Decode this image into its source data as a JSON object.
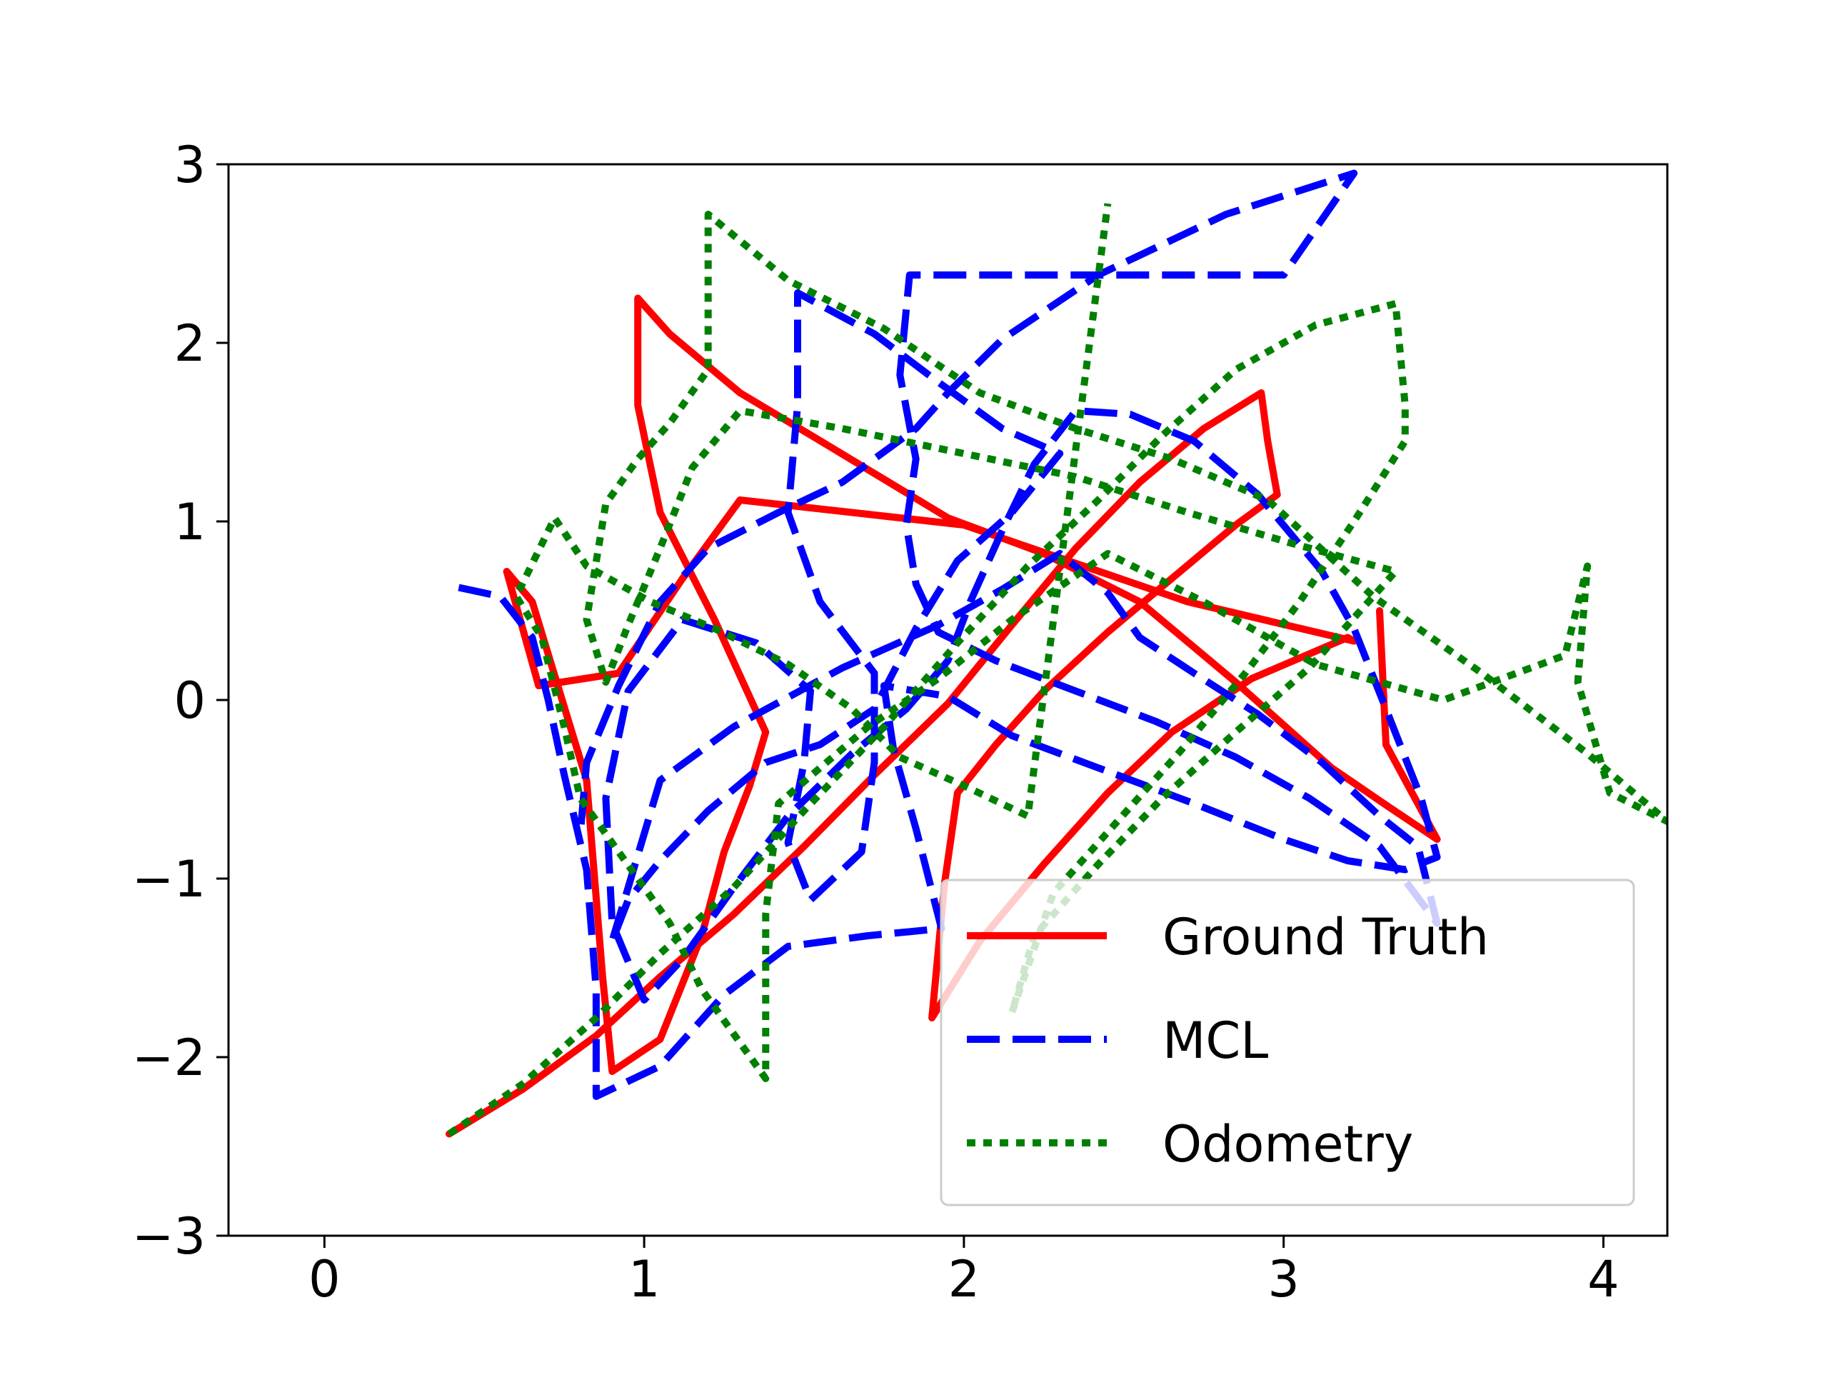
{
  "chart_data": {
    "type": "line",
    "title": "",
    "xlabel": "",
    "ylabel": "",
    "xlim": [
      -0.3,
      4.2
    ],
    "ylim": [
      -3,
      3
    ],
    "xticks": [
      0,
      1,
      2,
      3,
      4
    ],
    "yticks": [
      -3,
      -2,
      -1,
      0,
      1,
      2,
      3
    ],
    "xtick_labels": [
      "0",
      "1",
      "2",
      "3",
      "4"
    ],
    "ytick_labels": [
      "−3",
      "−2",
      "−1",
      "0",
      "1",
      "2",
      "3"
    ],
    "grid": false,
    "legend_position": "lower-right",
    "series": [
      {
        "name": "Ground Truth",
        "color": "#ff0000",
        "style": "solid",
        "points": [
          [
            0.39,
            -2.43
          ],
          [
            0.62,
            -2.18
          ],
          [
            0.85,
            -1.88
          ],
          [
            1.05,
            -1.55
          ],
          [
            1.28,
            -1.2
          ],
          [
            1.5,
            -0.82
          ],
          [
            1.72,
            -0.42
          ],
          [
            1.95,
            -0.02
          ],
          [
            2.15,
            0.42
          ],
          [
            2.35,
            0.85
          ],
          [
            2.55,
            1.22
          ],
          [
            2.75,
            1.52
          ],
          [
            2.93,
            1.72
          ],
          [
            2.95,
            1.45
          ],
          [
            2.98,
            1.15
          ],
          [
            2.85,
            0.98
          ],
          [
            2.65,
            0.68
          ],
          [
            2.45,
            0.38
          ],
          [
            2.25,
            0.05
          ],
          [
            2.1,
            -0.25
          ],
          [
            1.98,
            -0.52
          ],
          [
            1.94,
            -1.02
          ],
          [
            1.9,
            -1.78
          ],
          [
            2.05,
            -1.35
          ],
          [
            2.25,
            -0.92
          ],
          [
            2.45,
            -0.52
          ],
          [
            2.65,
            -0.18
          ],
          [
            2.9,
            0.12
          ],
          [
            3.2,
            0.35
          ],
          [
            3.22,
            0.33
          ],
          [
            2.7,
            0.55
          ],
          [
            2.0,
            0.98
          ],
          [
            1.3,
            1.12
          ],
          [
            1.12,
            0.68
          ],
          [
            0.92,
            0.15
          ],
          [
            0.67,
            0.08
          ],
          [
            0.57,
            0.72
          ],
          [
            0.65,
            0.55
          ],
          [
            0.82,
            -0.45
          ],
          [
            0.87,
            -1.55
          ],
          [
            0.9,
            -2.08
          ],
          [
            1.05,
            -1.9
          ],
          [
            1.18,
            -1.32
          ],
          [
            1.25,
            -0.85
          ],
          [
            1.33,
            -0.48
          ],
          [
            1.38,
            -0.18
          ],
          [
            1.22,
            0.45
          ],
          [
            1.05,
            1.05
          ],
          [
            0.98,
            1.65
          ],
          [
            0.98,
            2.25
          ],
          [
            1.08,
            2.05
          ],
          [
            1.3,
            1.72
          ],
          [
            1.58,
            1.42
          ],
          [
            1.95,
            1.02
          ],
          [
            2.25,
            0.82
          ],
          [
            2.55,
            0.55
          ],
          [
            2.85,
            0.1
          ],
          [
            3.15,
            -0.38
          ],
          [
            3.33,
            -0.6
          ],
          [
            3.48,
            -0.78
          ],
          [
            3.32,
            -0.25
          ],
          [
            3.3,
            0.5
          ]
        ]
      },
      {
        "name": "MCL",
        "color": "#0000ff",
        "style": "dashed",
        "points": [
          [
            0.42,
            0.63
          ],
          [
            0.55,
            0.58
          ],
          [
            0.65,
            0.35
          ],
          [
            0.7,
            0.0
          ],
          [
            0.75,
            -0.42
          ],
          [
            0.82,
            -0.95
          ],
          [
            0.85,
            -1.62
          ],
          [
            0.85,
            -2.22
          ],
          [
            1.05,
            -2.05
          ],
          [
            1.25,
            -1.65
          ],
          [
            1.45,
            -1.38
          ],
          [
            1.7,
            -1.32
          ],
          [
            1.93,
            -1.28
          ],
          [
            1.85,
            -0.72
          ],
          [
            1.78,
            -0.28
          ],
          [
            1.75,
            0.08
          ],
          [
            1.95,
            0.02
          ],
          [
            2.15,
            -0.2
          ],
          [
            2.42,
            -0.38
          ],
          [
            2.72,
            -0.58
          ],
          [
            3.0,
            -0.78
          ],
          [
            3.2,
            -0.9
          ],
          [
            3.38,
            -0.95
          ],
          [
            3.48,
            -0.88
          ],
          [
            3.43,
            -0.55
          ],
          [
            3.32,
            -0.05
          ],
          [
            3.22,
            0.4
          ],
          [
            3.12,
            0.72
          ],
          [
            2.92,
            1.15
          ],
          [
            2.72,
            1.45
          ],
          [
            2.52,
            1.6
          ],
          [
            2.35,
            1.62
          ],
          [
            2.22,
            1.32
          ],
          [
            2.12,
            0.95
          ],
          [
            2.02,
            0.55
          ],
          [
            1.95,
            0.22
          ],
          [
            1.82,
            -0.05
          ],
          [
            1.65,
            -0.3
          ],
          [
            1.45,
            -0.65
          ],
          [
            1.28,
            -1.05
          ],
          [
            1.12,
            -1.45
          ],
          [
            1.0,
            -1.68
          ],
          [
            0.9,
            -1.25
          ],
          [
            0.88,
            -0.55
          ],
          [
            0.95,
            0.05
          ],
          [
            1.12,
            0.45
          ],
          [
            1.35,
            0.32
          ],
          [
            1.52,
            0.05
          ],
          [
            1.5,
            -0.35
          ],
          [
            1.45,
            -0.8
          ],
          [
            1.52,
            -1.12
          ],
          [
            1.68,
            -0.85
          ],
          [
            1.72,
            -0.35
          ],
          [
            1.72,
            0.15
          ],
          [
            1.55,
            0.55
          ],
          [
            1.45,
            1.05
          ],
          [
            1.48,
            1.65
          ],
          [
            1.48,
            2.28
          ],
          [
            1.72,
            2.05
          ],
          [
            1.92,
            1.78
          ],
          [
            2.12,
            1.52
          ],
          [
            2.3,
            1.38
          ],
          [
            2.15,
            1.05
          ],
          [
            1.98,
            0.78
          ],
          [
            1.85,
            0.4
          ],
          [
            1.72,
            -0.05
          ],
          [
            1.55,
            -0.25
          ],
          [
            1.38,
            -0.35
          ],
          [
            1.2,
            -0.62
          ],
          [
            1.05,
            -0.9
          ],
          [
            0.95,
            -1.12
          ],
          [
            0.9,
            -1.35
          ],
          [
            0.95,
            -1.05
          ],
          [
            1.05,
            -0.45
          ],
          [
            1.28,
            -0.15
          ],
          [
            1.62,
            0.18
          ],
          [
            1.92,
            0.42
          ],
          [
            2.12,
            0.62
          ],
          [
            2.3,
            0.82
          ],
          [
            2.45,
            0.6
          ],
          [
            2.55,
            0.35
          ],
          [
            2.72,
            0.15
          ],
          [
            2.92,
            -0.08
          ],
          [
            3.12,
            -0.35
          ],
          [
            3.3,
            -0.65
          ],
          [
            3.42,
            -0.82
          ],
          [
            3.48,
            -1.25
          ],
          [
            3.3,
            -0.82
          ],
          [
            3.08,
            -0.55
          ],
          [
            2.85,
            -0.32
          ],
          [
            2.6,
            -0.12
          ],
          [
            2.35,
            0.05
          ],
          [
            2.1,
            0.22
          ],
          [
            1.92,
            0.38
          ],
          [
            1.85,
            0.65
          ],
          [
            1.82,
            0.98
          ],
          [
            1.85,
            1.35
          ],
          [
            1.8,
            1.82
          ],
          [
            1.83,
            2.38
          ],
          [
            2.42,
            2.38
          ],
          [
            3.0,
            2.38
          ],
          [
            3.22,
            2.95
          ],
          [
            2.82,
            2.72
          ],
          [
            2.42,
            2.38
          ],
          [
            2.12,
            2.02
          ],
          [
            1.95,
            1.72
          ],
          [
            1.85,
            1.52
          ],
          [
            1.62,
            1.22
          ],
          [
            1.42,
            1.05
          ],
          [
            1.2,
            0.85
          ],
          [
            1.05,
            0.55
          ],
          [
            0.92,
            0.08
          ],
          [
            0.82,
            -0.35
          ],
          [
            0.8,
            -0.75
          ]
        ]
      },
      {
        "name": "Odometry",
        "color": "#008000",
        "style": "dotted",
        "points": [
          [
            0.39,
            -2.43
          ],
          [
            0.62,
            -2.15
          ],
          [
            0.85,
            -1.78
          ],
          [
            1.05,
            -1.42
          ],
          [
            1.28,
            -1.05
          ],
          [
            1.5,
            -0.62
          ],
          [
            1.75,
            -0.15
          ],
          [
            1.98,
            0.32
          ],
          [
            2.2,
            0.75
          ],
          [
            2.42,
            1.12
          ],
          [
            2.62,
            1.48
          ],
          [
            2.85,
            1.85
          ],
          [
            3.1,
            2.1
          ],
          [
            3.35,
            2.22
          ],
          [
            3.38,
            1.65
          ],
          [
            3.38,
            1.45
          ],
          [
            3.22,
            1.0
          ],
          [
            3.05,
            0.55
          ],
          [
            2.88,
            0.15
          ],
          [
            2.68,
            -0.28
          ],
          [
            2.48,
            -0.68
          ],
          [
            2.28,
            -1.08
          ],
          [
            2.15,
            -1.75
          ],
          [
            2.22,
            -1.32
          ],
          [
            2.42,
            -0.92
          ],
          [
            2.62,
            -0.55
          ],
          [
            2.85,
            -0.18
          ],
          [
            3.08,
            0.18
          ],
          [
            3.35,
            0.72
          ],
          [
            3.02,
            0.88
          ],
          [
            2.7,
            1.05
          ],
          [
            2.35,
            1.25
          ],
          [
            2.0,
            1.38
          ],
          [
            1.62,
            1.52
          ],
          [
            1.3,
            1.62
          ],
          [
            1.15,
            1.3
          ],
          [
            1.05,
            0.85
          ],
          [
            0.95,
            0.42
          ],
          [
            0.88,
            0.1
          ],
          [
            0.82,
            0.45
          ],
          [
            0.88,
            1.1
          ],
          [
            0.98,
            1.35
          ],
          [
            1.08,
            1.55
          ],
          [
            1.2,
            1.85
          ],
          [
            1.2,
            2.72
          ],
          [
            1.45,
            2.35
          ],
          [
            1.75,
            2.08
          ],
          [
            2.05,
            1.72
          ],
          [
            2.35,
            1.52
          ],
          [
            2.65,
            1.35
          ],
          [
            2.95,
            1.12
          ],
          [
            3.28,
            0.58
          ],
          [
            3.62,
            0.15
          ],
          [
            3.95,
            -0.3
          ],
          [
            4.2,
            -0.68
          ],
          [
            4.02,
            -0.52
          ],
          [
            3.92,
            0.1
          ],
          [
            3.95,
            0.75
          ],
          [
            3.88,
            0.25
          ],
          [
            3.5,
            0.0
          ],
          [
            3.1,
            0.2
          ],
          [
            2.75,
            0.55
          ],
          [
            2.45,
            0.82
          ],
          [
            2.15,
            0.45
          ],
          [
            1.92,
            0.12
          ],
          [
            1.7,
            -0.15
          ],
          [
            1.42,
            -0.58
          ],
          [
            1.38,
            -1.2
          ],
          [
            1.38,
            -1.88
          ],
          [
            1.38,
            -2.12
          ],
          [
            1.18,
            -1.62
          ],
          [
            1.08,
            -1.25
          ],
          [
            0.92,
            -0.85
          ],
          [
            0.8,
            -0.55
          ],
          [
            0.75,
            -0.15
          ],
          [
            0.68,
            0.35
          ],
          [
            0.6,
            0.58
          ],
          [
            0.72,
            1.02
          ],
          [
            0.82,
            0.75
          ],
          [
            1.02,
            0.55
          ],
          [
            1.22,
            0.4
          ],
          [
            1.45,
            0.2
          ],
          [
            1.65,
            -0.05
          ],
          [
            1.8,
            -0.32
          ],
          [
            2.0,
            -0.48
          ],
          [
            2.2,
            -0.65
          ],
          [
            2.45,
            2.78
          ]
        ]
      }
    ]
  }
}
